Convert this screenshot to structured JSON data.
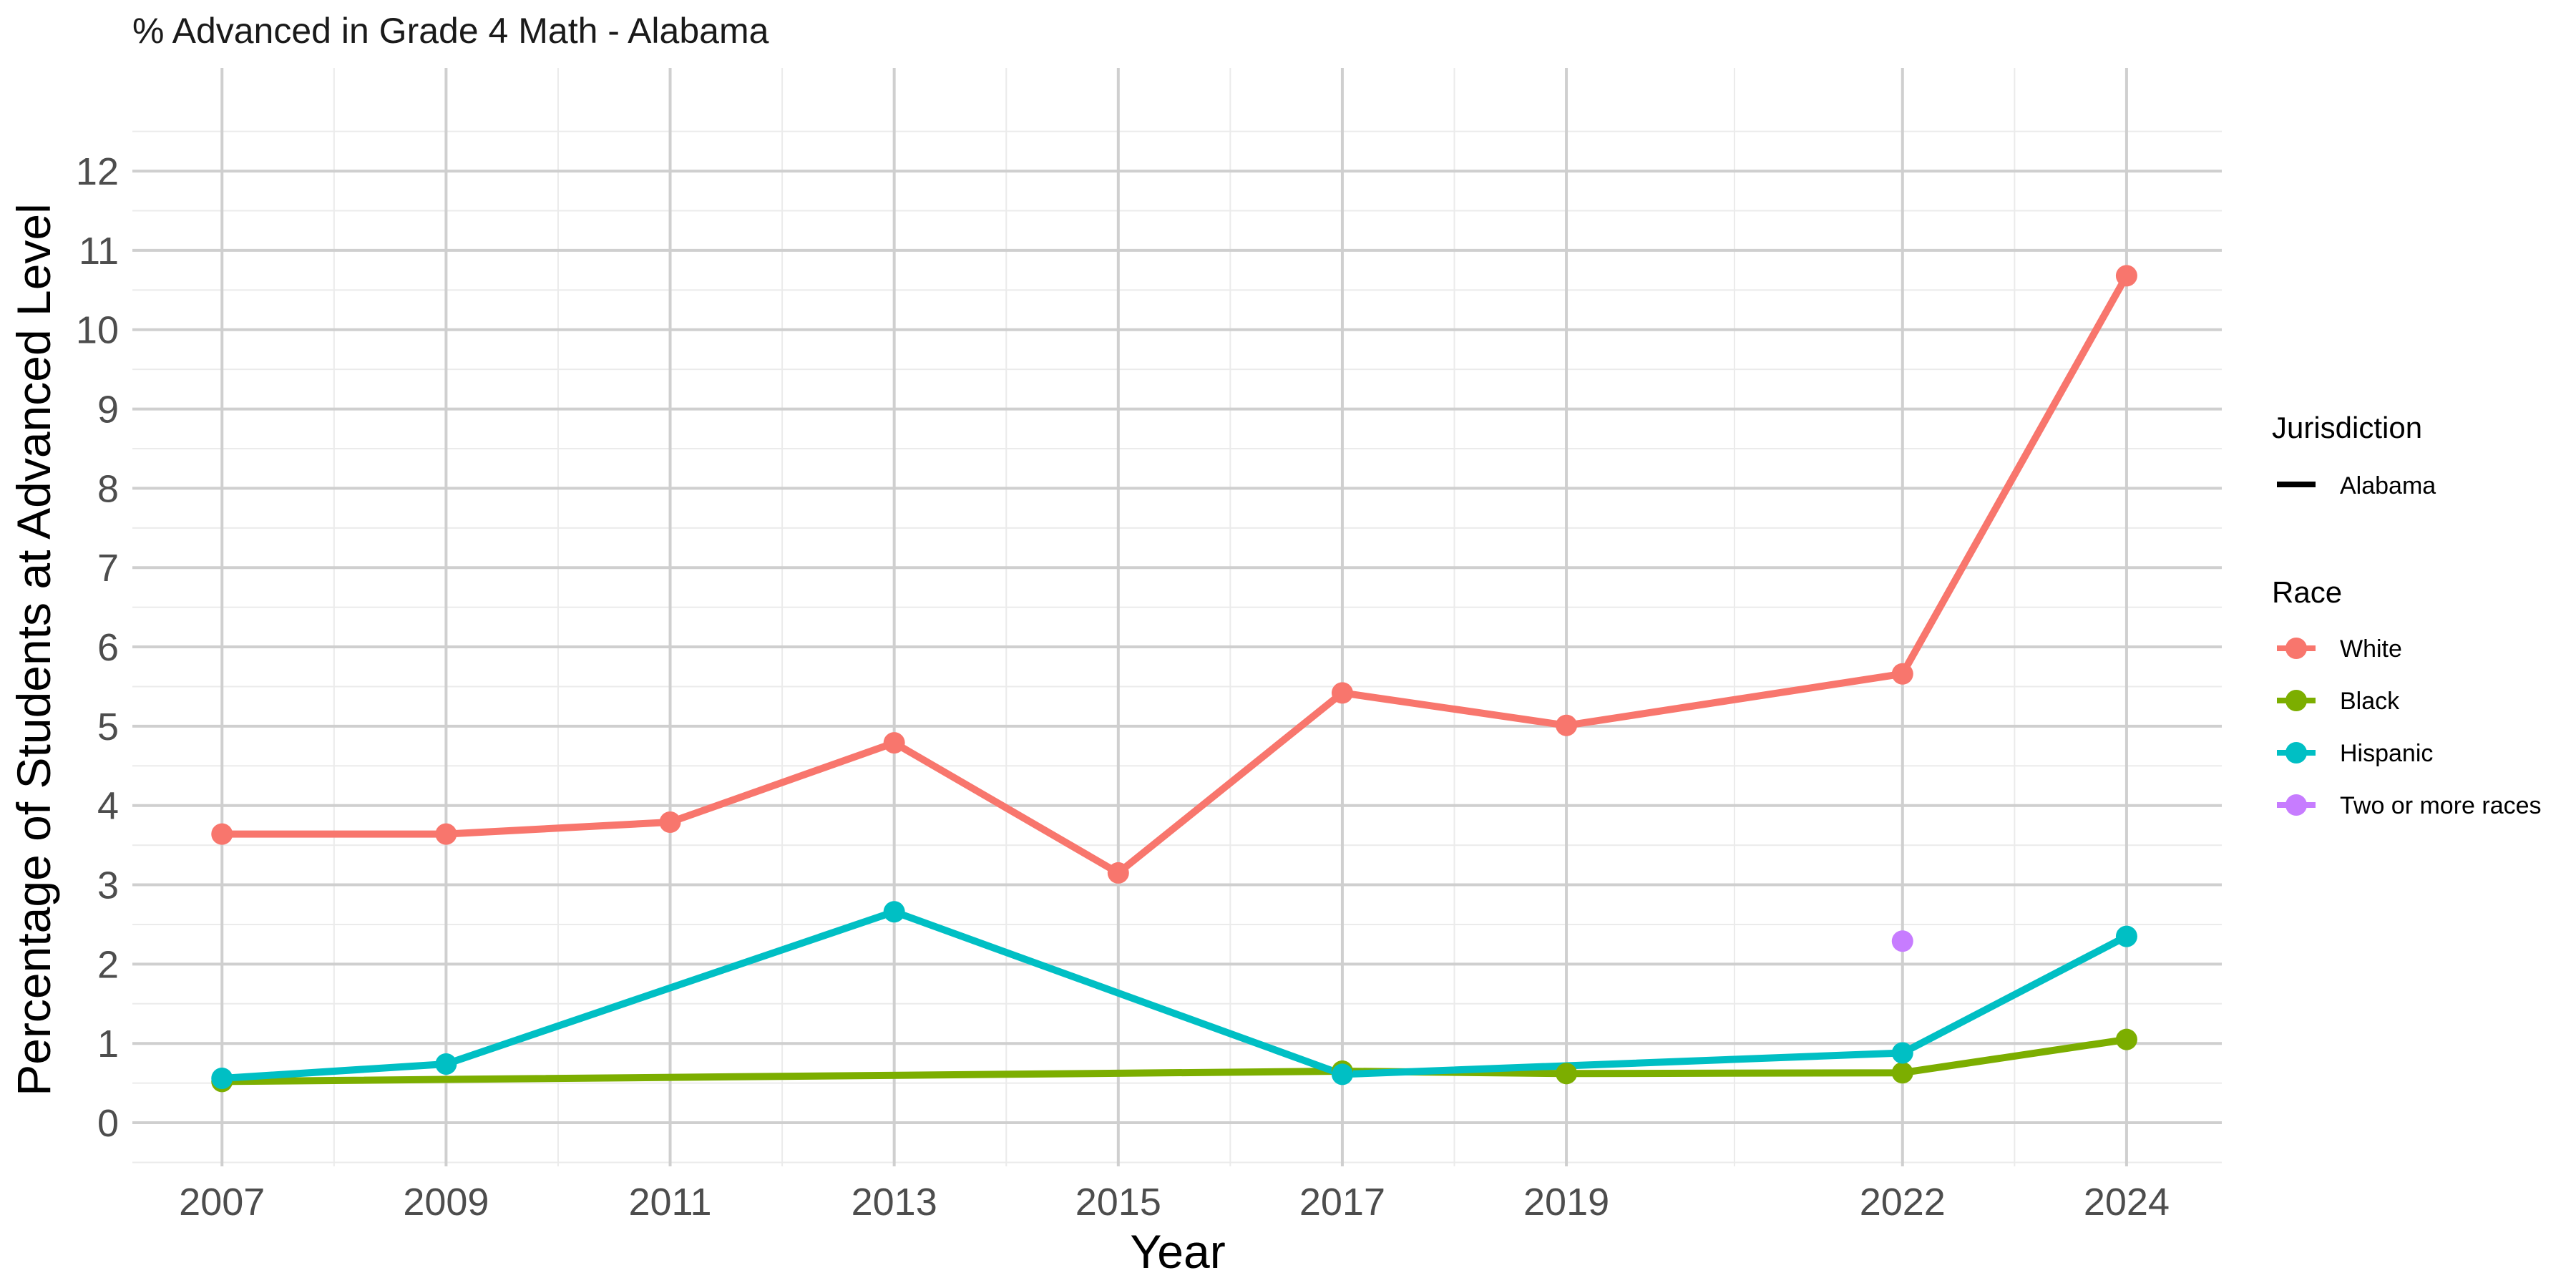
{
  "chart_data": {
    "type": "line",
    "title": "% Advanced in Grade 4 Math - Alabama",
    "xlabel": "Year",
    "ylabel": "Percentage of Students at Advanced Level",
    "x_ticks": [
      2007,
      2009,
      2011,
      2013,
      2015,
      2017,
      2019,
      2022,
      2024
    ],
    "y_ticks": [
      0,
      1,
      2,
      3,
      4,
      5,
      6,
      7,
      8,
      9,
      10,
      11,
      12
    ],
    "xlim": [
      2006.2,
      2024.85
    ],
    "ylim": [
      -0.55,
      13.3
    ],
    "grid": true,
    "legend_position": "right",
    "legend": {
      "linetype_title": "Jurisdiction",
      "linetype_entries": [
        "Alabama"
      ],
      "color_title": "Race"
    },
    "series": [
      {
        "name": "White",
        "color": "#F8766D",
        "x": [
          2007,
          2009,
          2011,
          2013,
          2015,
          2017,
          2019,
          2022,
          2024
        ],
        "y": [
          3.64,
          3.64,
          3.79,
          4.79,
          3.15,
          5.42,
          5.01,
          5.66,
          10.68
        ]
      },
      {
        "name": "Black",
        "color": "#7CAE00",
        "x": [
          2007,
          2017,
          2019,
          2022,
          2024
        ],
        "y": [
          0.52,
          0.65,
          0.62,
          0.63,
          1.05
        ]
      },
      {
        "name": "Hispanic",
        "color": "#00BFC4",
        "x": [
          2007,
          2009,
          2013,
          2017,
          2022,
          2024
        ],
        "y": [
          0.56,
          0.74,
          2.66,
          0.61,
          0.88,
          2.35
        ]
      },
      {
        "name": "Two or more races",
        "color": "#C77CFF",
        "x": [
          2022
        ],
        "y": [
          2.29
        ]
      }
    ]
  }
}
